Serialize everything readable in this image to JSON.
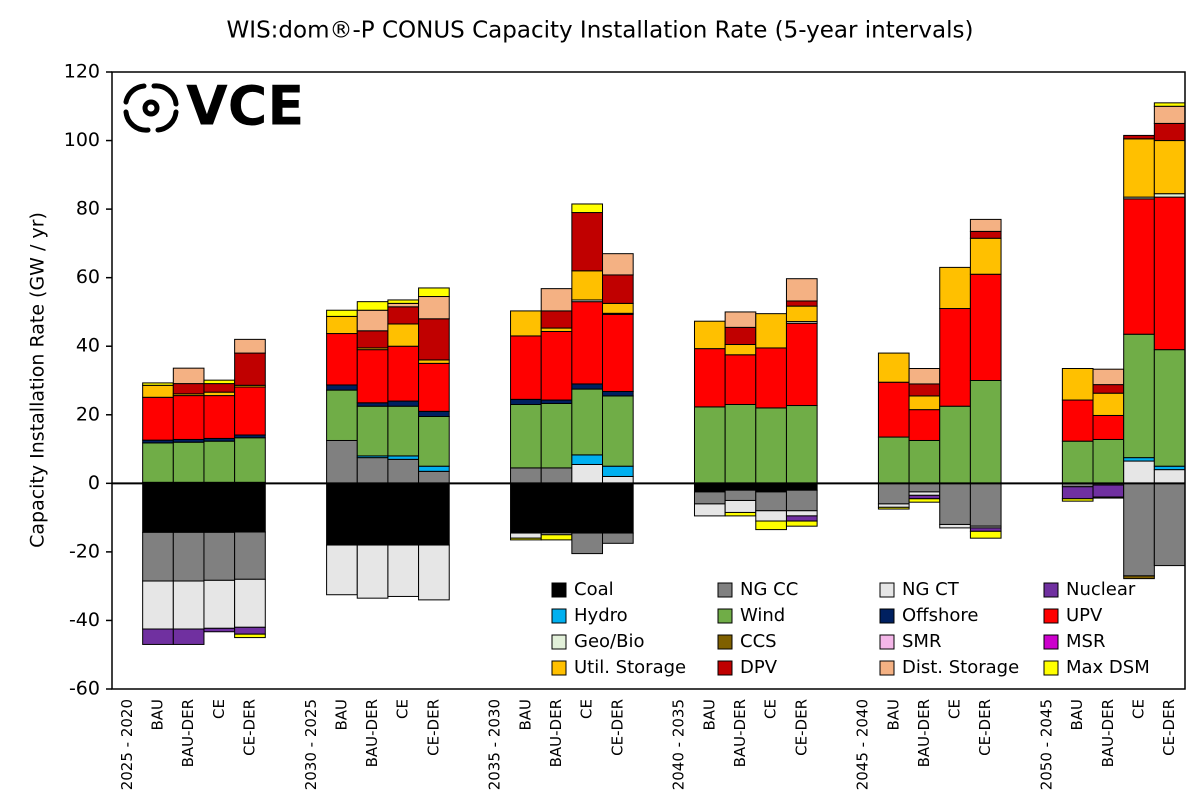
{
  "logo": "VCE",
  "chart_data": {
    "type": "stacked-bar",
    "title": "WIS:dom®-P CONUS Capacity Installation Rate (5-year intervals)",
    "y_label": "Capacity Installation Rate (GW / yr)",
    "ylim": [
      -60,
      120
    ],
    "yticks": [
      -60,
      -40,
      -20,
      0,
      20,
      40,
      60,
      80,
      100,
      120
    ],
    "legend": "lower-right",
    "categories": [
      "2025 - 2020",
      "BAU",
      "BAU-DER",
      "CE",
      "CE-DER",
      null,
      "2030 - 2025",
      "BAU",
      "BAU-DER",
      "CE",
      "CE-DER",
      null,
      "2035 - 2030",
      "BAU",
      "BAU-DER",
      "CE",
      "CE-DER",
      null,
      "2040 - 2035",
      "BAU",
      "BAU-DER",
      "CE",
      "CE-DER",
      null,
      "2045 - 2040",
      "BAU",
      "BAU-DER",
      "CE",
      "CE-DER",
      null,
      "2050 - 2045",
      "BAU",
      "BAU-DER",
      "CE",
      "CE-DER"
    ],
    "series": [
      {
        "name": "Coal",
        "color": "#000000",
        "values": [
          null,
          -14.3,
          -14.3,
          -14.3,
          -14.2,
          null,
          null,
          -18,
          -18,
          -18,
          -18,
          null,
          null,
          -14.5,
          -14.5,
          -14.5,
          -14.5,
          null,
          null,
          -2.5,
          -2,
          -2.5,
          -2,
          null,
          null,
          0,
          0,
          0,
          0,
          null,
          null,
          0,
          0,
          0,
          0
        ]
      },
      {
        "name": "NG CC",
        "color": "#808080",
        "values": [
          null,
          -14.2,
          -14.2,
          -14,
          -13.8,
          null,
          null,
          12.5,
          7.5,
          7,
          3.5,
          null,
          null,
          4.5,
          4.5,
          -6,
          -3,
          null,
          null,
          -3.5,
          -3,
          -5.5,
          -6,
          null,
          null,
          -6,
          -2.5,
          -12,
          -12.5,
          null,
          null,
          -1,
          -0.5,
          -27,
          -24
        ]
      },
      {
        "name": "NG CT",
        "color": "#e6e6e6",
        "values": [
          null,
          -14,
          -14,
          -14,
          -14,
          null,
          null,
          -14.5,
          -15.5,
          -15,
          -16,
          null,
          null,
          -1.5,
          -0.5,
          5.5,
          2,
          null,
          null,
          -3.5,
          -3.5,
          -3,
          -1.5,
          null,
          null,
          -1,
          -1,
          -1,
          -0.5,
          null,
          null,
          0,
          0,
          6.5,
          4
        ]
      },
      {
        "name": "Nuclear",
        "color": "#7030a0",
        "values": [
          null,
          -4.5,
          -4.5,
          -1,
          -2,
          null,
          null,
          0,
          0,
          0,
          0,
          null,
          null,
          0,
          0,
          0,
          0,
          null,
          null,
          0,
          0,
          0,
          -1.5,
          null,
          null,
          0,
          -1,
          0,
          -1,
          null,
          null,
          -3.5,
          -3.5,
          0,
          0
        ]
      },
      {
        "name": "Hydro",
        "color": "#00b0f0",
        "values": [
          null,
          0.3,
          0.3,
          0.3,
          0.3,
          null,
          null,
          0,
          0.5,
          1,
          1.5,
          null,
          null,
          0,
          0,
          2.8,
          3,
          null,
          null,
          0,
          0,
          0,
          0,
          null,
          null,
          0,
          0,
          0,
          0,
          null,
          null,
          0,
          0,
          1,
          1
        ]
      },
      {
        "name": "Wind",
        "color": "#70ad47",
        "values": [
          null,
          11.5,
          11.7,
          12,
          13,
          null,
          null,
          14.7,
          14.5,
          14.5,
          14.5,
          null,
          null,
          18.5,
          18.8,
          19.2,
          20.5,
          null,
          null,
          22.3,
          23,
          22,
          22.7,
          null,
          null,
          13.5,
          12.5,
          22.5,
          30,
          null,
          null,
          12.3,
          12.8,
          36,
          34
        ]
      },
      {
        "name": "Offshore",
        "color": "#002060",
        "values": [
          null,
          0.8,
          0.8,
          0.8,
          0.8,
          null,
          null,
          1.5,
          1,
          1.5,
          1.5,
          null,
          null,
          1.5,
          1,
          1.5,
          1.3,
          null,
          null,
          0,
          0,
          0,
          0,
          null,
          null,
          0,
          0,
          0,
          0,
          null,
          null,
          0,
          0,
          0,
          0
        ]
      },
      {
        "name": "UPV",
        "color": "#ff0000",
        "values": [
          null,
          12.5,
          12.8,
          12.5,
          14,
          null,
          null,
          15,
          15.5,
          16,
          14,
          null,
          null,
          18.5,
          20,
          24,
          22.5,
          null,
          null,
          17,
          14.5,
          17.5,
          24,
          null,
          null,
          16,
          9,
          28.5,
          31,
          null,
          null,
          12,
          7,
          39.5,
          44.5
        ]
      },
      {
        "name": "Geo/Bio",
        "color": "#e2f0d9",
        "values": [
          null,
          0,
          0,
          0,
          0,
          null,
          null,
          0,
          0,
          0,
          0,
          null,
          null,
          0,
          0,
          0.5,
          0.3,
          null,
          null,
          0,
          0,
          0,
          0.5,
          null,
          null,
          0,
          0,
          0,
          0,
          null,
          null,
          0,
          0,
          0.5,
          1
        ]
      },
      {
        "name": "CCS",
        "color": "#7f6000",
        "values": [
          null,
          0,
          0,
          0,
          0,
          null,
          null,
          0,
          0,
          0,
          0,
          null,
          null,
          0,
          0,
          0,
          0,
          null,
          null,
          0,
          0,
          0,
          0,
          null,
          null,
          0,
          0,
          0,
          0,
          null,
          null,
          0,
          0,
          -0.8,
          0
        ]
      },
      {
        "name": "SMR",
        "color": "#f4b6e8",
        "values": [
          null,
          0,
          0,
          0,
          0,
          null,
          null,
          0,
          0,
          0,
          0,
          null,
          null,
          0,
          0,
          0,
          0,
          null,
          null,
          0,
          0,
          0,
          0,
          null,
          null,
          0,
          0,
          0,
          0,
          null,
          null,
          0,
          0,
          0,
          0
        ]
      },
      {
        "name": "MSR",
        "color": "#cc00cc",
        "values": [
          null,
          0,
          0,
          0,
          0,
          null,
          null,
          0,
          0,
          0,
          0,
          null,
          null,
          0,
          0,
          0,
          0,
          null,
          null,
          0,
          0,
          0,
          0,
          null,
          null,
          0,
          0,
          0,
          0,
          null,
          null,
          0,
          0,
          0,
          0
        ]
      },
      {
        "name": "Util. Storage",
        "color": "#ffc000",
        "values": [
          null,
          3.5,
          0.5,
          1,
          0.5,
          null,
          null,
          5,
          0.5,
          6.5,
          1,
          null,
          null,
          7.3,
          1,
          8.5,
          2.9,
          null,
          null,
          8,
          3,
          10,
          4.5,
          null,
          null,
          8.5,
          4,
          12,
          10.5,
          null,
          null,
          9.2,
          6.5,
          17,
          15.5
        ]
      },
      {
        "name": "DPV",
        "color": "#c00000",
        "values": [
          null,
          0,
          3,
          2.5,
          9.4,
          null,
          null,
          0,
          5,
          5,
          12,
          null,
          null,
          0,
          5,
          17,
          8.3,
          null,
          null,
          0,
          5,
          0,
          1.5,
          null,
          null,
          0,
          3.5,
          0,
          2,
          null,
          null,
          0,
          2.5,
          1,
          5
        ]
      },
      {
        "name": "Dist. Storage",
        "color": "#f4b183",
        "values": [
          null,
          0,
          4.5,
          0,
          4,
          null,
          null,
          0,
          6,
          1,
          6.5,
          null,
          null,
          0,
          6.5,
          0,
          6.2,
          null,
          null,
          0,
          4.5,
          0,
          6.5,
          null,
          null,
          0,
          4.5,
          0,
          3.5,
          null,
          null,
          0,
          4.5,
          0,
          5
        ]
      },
      {
        "name": "Max DSM",
        "color": "#ffff00",
        "values": [
          null,
          0.7,
          0,
          1,
          -1,
          null,
          null,
          1.8,
          2.5,
          1,
          2.5,
          null,
          null,
          -0.5,
          -1.5,
          2.5,
          0,
          null,
          null,
          0,
          -1,
          -2.5,
          -1.5,
          null,
          null,
          -0.5,
          -1,
          0,
          -2,
          null,
          null,
          -0.7,
          -0.3,
          0,
          1
        ]
      }
    ]
  }
}
